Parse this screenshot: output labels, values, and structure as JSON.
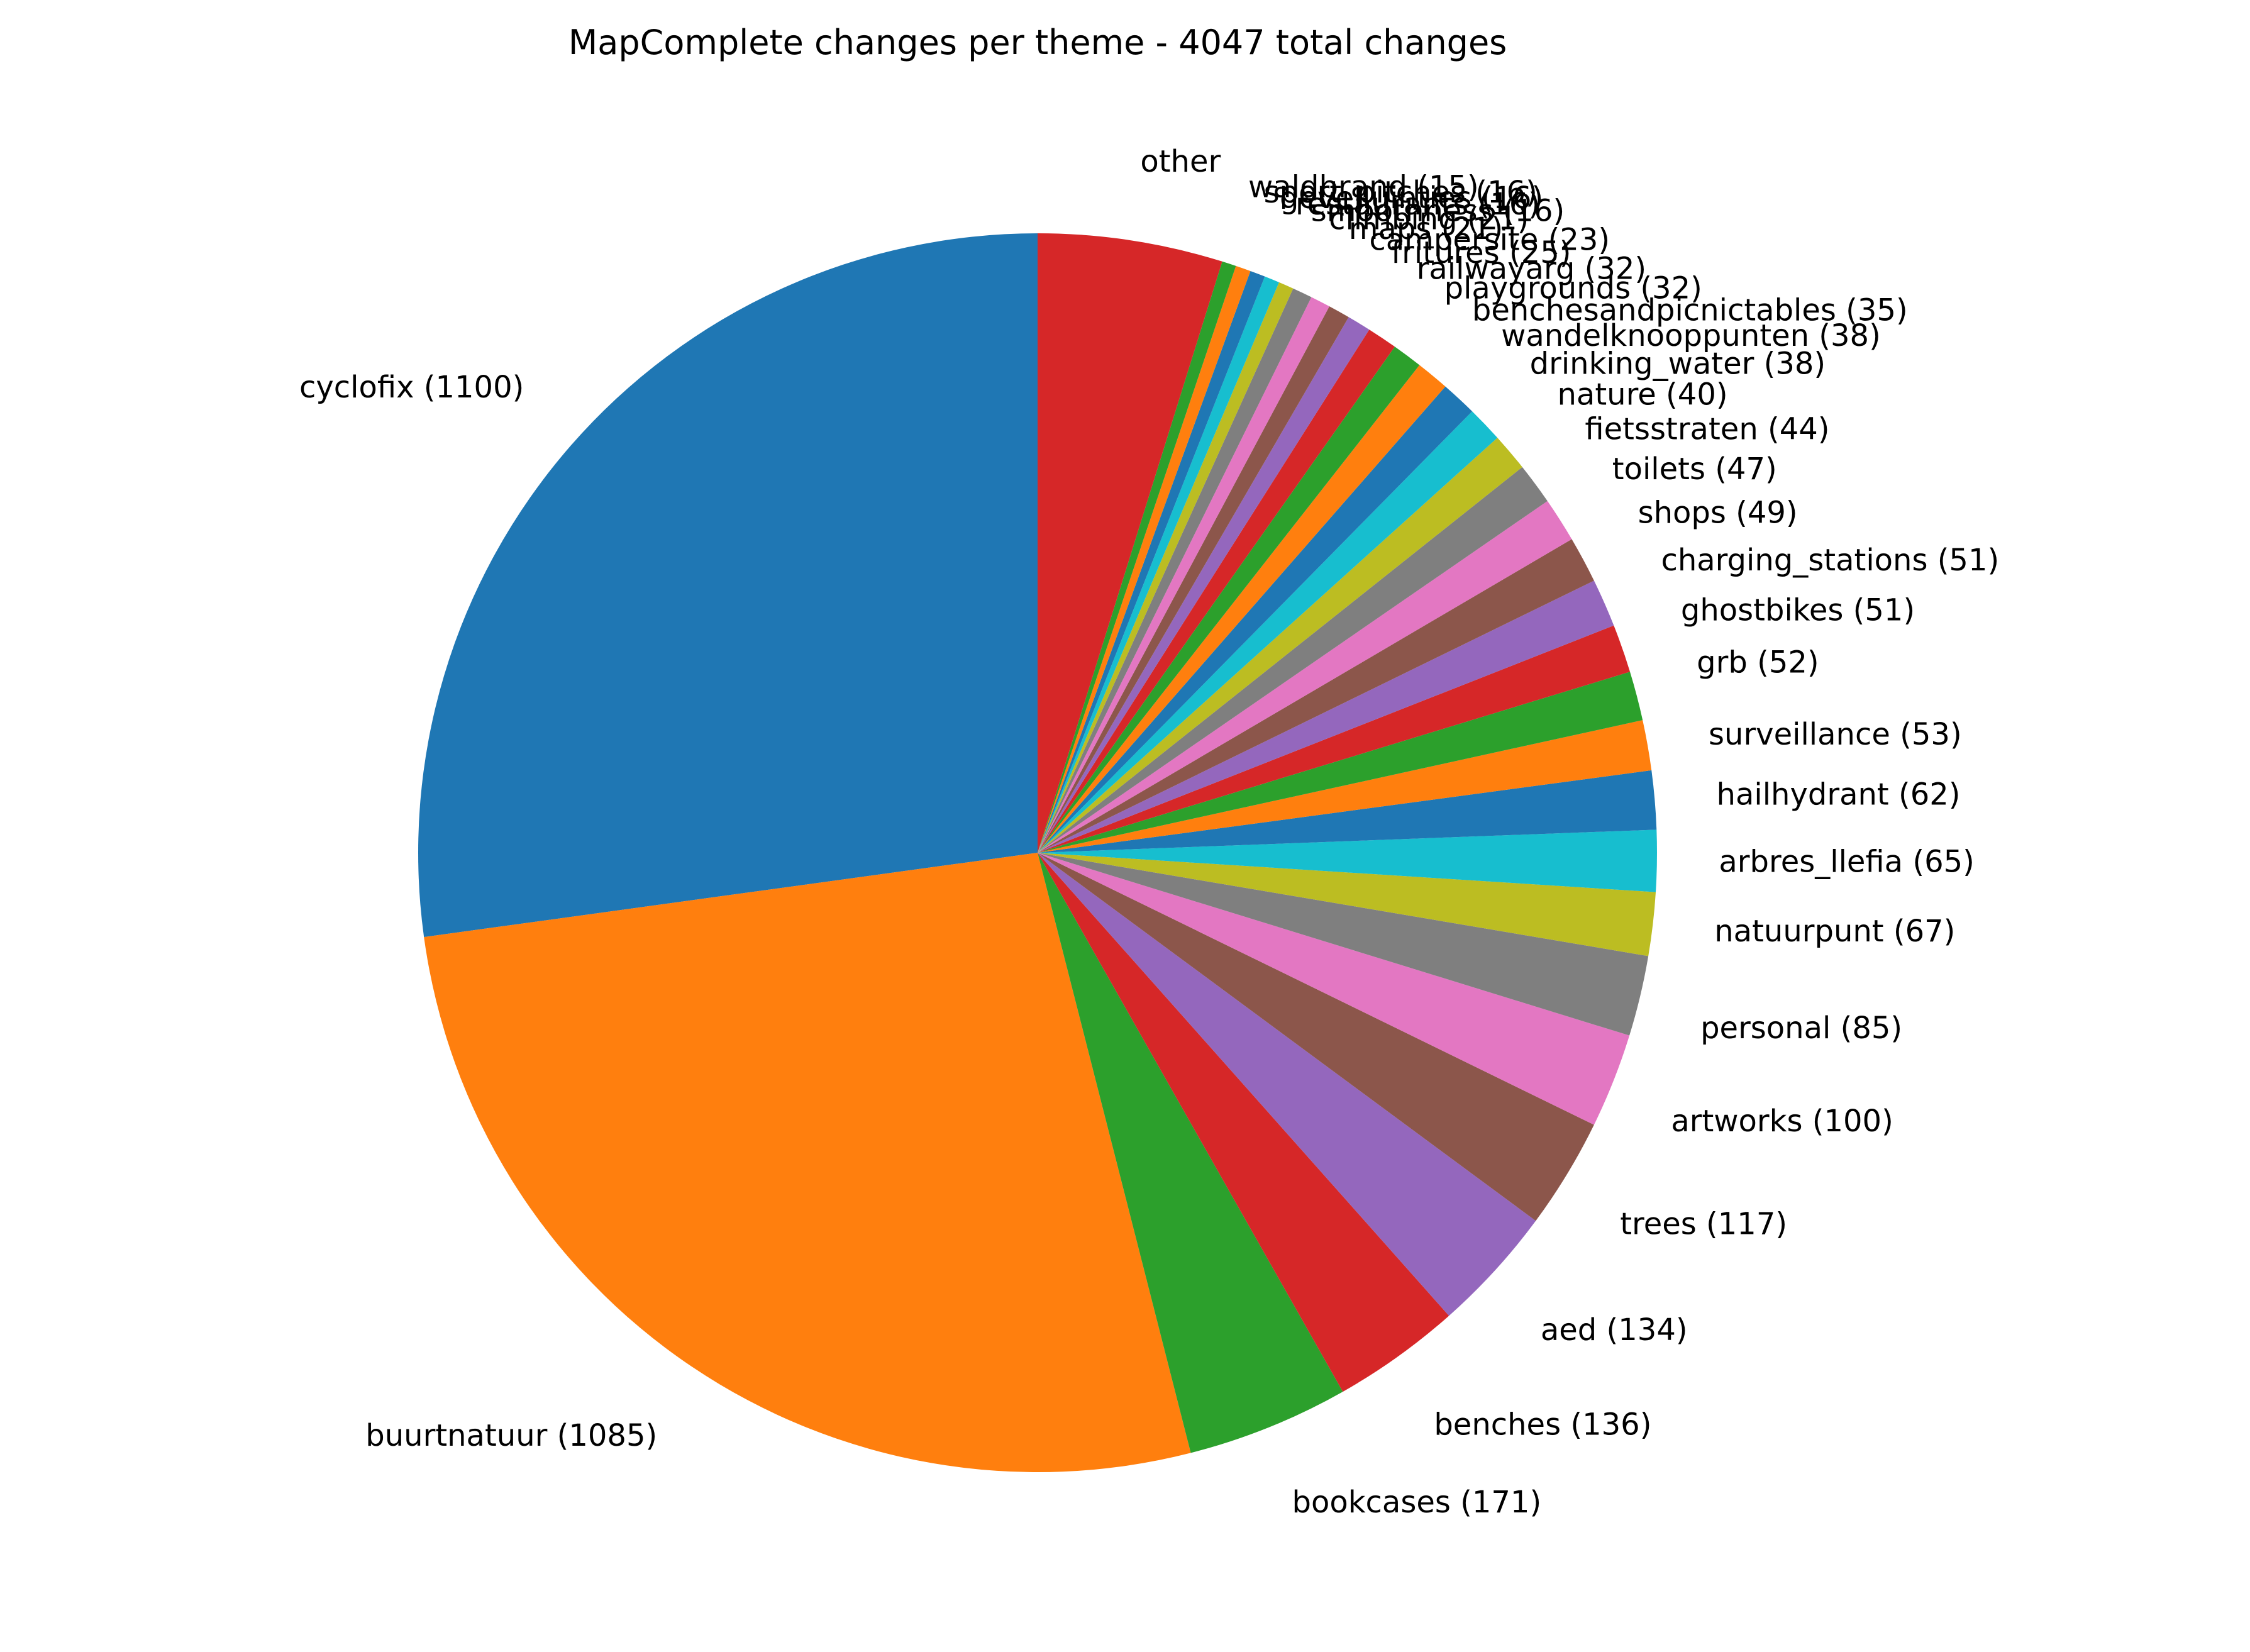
{
  "chart_data": {
    "type": "pie",
    "title": "MapComplete changes per theme - 4047 total changes",
    "start_angle_deg": 90,
    "direction": "counterclockwise",
    "colors": [
      "#1f77b4",
      "#ff7f0e",
      "#2ca02c",
      "#d62728",
      "#9467bd",
      "#8c564b",
      "#e377c2",
      "#7f7f7f",
      "#bcbd22",
      "#17becf"
    ],
    "slices": [
      {
        "name": "cyclofix",
        "value": 1100,
        "label": "cyclofix (1100)"
      },
      {
        "name": "buurtnatuur",
        "value": 1085,
        "label": "buurtnatuur (1085)"
      },
      {
        "name": "bookcases",
        "value": 171,
        "label": "bookcases (171)"
      },
      {
        "name": "benches",
        "value": 136,
        "label": "benches (136)"
      },
      {
        "name": "aed",
        "value": 134,
        "label": "aed (134)"
      },
      {
        "name": "trees",
        "value": 117,
        "label": "trees (117)"
      },
      {
        "name": "artworks",
        "value": 100,
        "label": "artworks (100)"
      },
      {
        "name": "personal",
        "value": 85,
        "label": "personal (85)"
      },
      {
        "name": "natuurpunt",
        "value": 67,
        "label": "natuurpunt (67)"
      },
      {
        "name": "arbres_llefia",
        "value": 65,
        "label": "arbres_llefia (65)"
      },
      {
        "name": "hailhydrant",
        "value": 62,
        "label": "hailhydrant (62)"
      },
      {
        "name": "surveillance",
        "value": 53,
        "label": "surveillance (53)"
      },
      {
        "name": "grb",
        "value": 52,
        "label": "grb (52)"
      },
      {
        "name": "ghostbikes",
        "value": 51,
        "label": "ghostbikes (51)"
      },
      {
        "name": "charging_stations",
        "value": 51,
        "label": "charging_stations (51)"
      },
      {
        "name": "shops",
        "value": 49,
        "label": "shops (49)"
      },
      {
        "name": "toilets",
        "value": 47,
        "label": "toilets (47)"
      },
      {
        "name": "fietsstraten",
        "value": 44,
        "label": "fietsstraten (44)"
      },
      {
        "name": "nature",
        "value": 40,
        "label": "nature (40)"
      },
      {
        "name": "drinking_water",
        "value": 38,
        "label": "drinking_water (38)"
      },
      {
        "name": "wandelknooppunten",
        "value": 38,
        "label": "wandelknooppunten (38)"
      },
      {
        "name": "benchesandpicnictables",
        "value": 35,
        "label": "benchesandpicnictables (35)"
      },
      {
        "name": "playgrounds",
        "value": 32,
        "label": "playgrounds (32)"
      },
      {
        "name": "railwayarg",
        "value": 32,
        "label": "railwayarg (32)"
      },
      {
        "name": "fritures",
        "value": 25,
        "label": "fritures (25)"
      },
      {
        "name": "campersite",
        "value": 23,
        "label": "campersite (23)"
      },
      {
        "name": "maps",
        "value": 21,
        "label": "maps (21)"
      },
      {
        "name": "climbing",
        "value": 21,
        "label": "climbing (21)"
      },
      {
        "name": "smoothness",
        "value": 16,
        "label": "smoothness (16)"
      },
      {
        "name": "restaurants",
        "value": 16,
        "label": "restaurants (16)"
      },
      {
        "name": "gevelluinties",
        "value": 16,
        "label": "gevelluinties (16)"
      },
      {
        "name": "sport_pitches",
        "value": 16,
        "label": "sport_pitches (16)"
      },
      {
        "name": "waldbrand",
        "value": 15,
        "label": "waldbrand (15)"
      },
      {
        "name": "other",
        "value": 195,
        "label": "other"
      }
    ]
  }
}
